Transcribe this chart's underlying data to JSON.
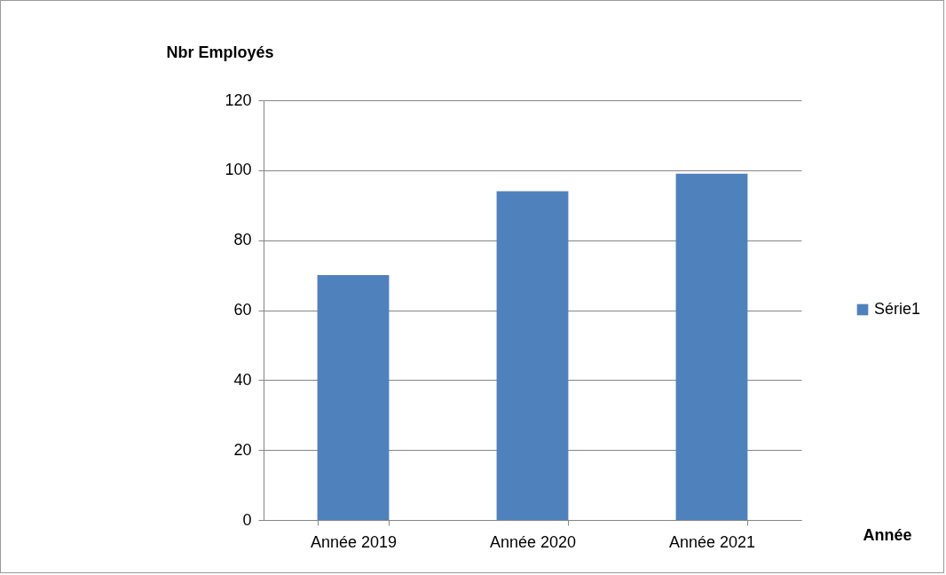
{
  "chart_data": {
    "type": "bar",
    "xlabel": "Année",
    "ylabel": "Nbr Employés",
    "categories": [
      "Année 2019",
      "Année 2020",
      "Année 2021"
    ],
    "series": [
      {
        "name": "Série1",
        "color": "#4f81bd",
        "values": [
          70,
          94,
          99
        ]
      }
    ],
    "ylim": [
      0,
      120
    ],
    "yticks": [
      0,
      20,
      40,
      60,
      80,
      100,
      120
    ],
    "grid": "y",
    "legend": "right"
  }
}
